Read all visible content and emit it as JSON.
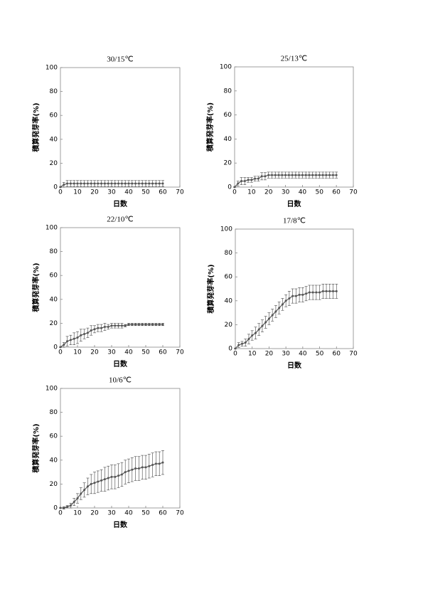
{
  "chart_data": [
    {
      "type": "line",
      "title": "30/15℃",
      "xlabel": "日数",
      "ylabel": "積算発芽率(%)",
      "xlim": [
        0,
        70
      ],
      "ylim": [
        0,
        100
      ],
      "xticks": [
        0,
        10,
        20,
        30,
        40,
        50,
        60,
        70
      ],
      "yticks": [
        0,
        20,
        40,
        60,
        80,
        100
      ],
      "color": "#555555",
      "x": [
        0,
        2,
        4,
        6,
        8,
        10,
        12,
        14,
        16,
        18,
        20,
        22,
        24,
        26,
        28,
        30,
        32,
        34,
        36,
        38,
        40,
        42,
        44,
        46,
        48,
        50,
        52,
        54,
        56,
        58,
        60
      ],
      "values": [
        0,
        2,
        3,
        3,
        3,
        3,
        3,
        3,
        3,
        3,
        3,
        3,
        3,
        3,
        3,
        3,
        3,
        3,
        3,
        3,
        3,
        3,
        3,
        3,
        3,
        3,
        3,
        3,
        3,
        3,
        3
      ],
      "errors": [
        0,
        2,
        2.5,
        2.5,
        2.5,
        2.5,
        2.5,
        2.5,
        2.5,
        2.5,
        2.5,
        2.5,
        2.5,
        2.5,
        2.5,
        2.5,
        2.5,
        2.5,
        2.5,
        2.5,
        2.5,
        2.5,
        2.5,
        2.5,
        2.5,
        2.5,
        2.5,
        2.5,
        2.5,
        2.5,
        2.5
      ]
    },
    {
      "type": "line",
      "title": "25/13℃",
      "xlabel": "日数",
      "ylabel": "積算発芽率(%)",
      "xlim": [
        0,
        70
      ],
      "ylim": [
        0,
        100
      ],
      "xticks": [
        0,
        10,
        20,
        30,
        40,
        50,
        60,
        70
      ],
      "yticks": [
        0,
        20,
        40,
        60,
        80,
        100
      ],
      "color": "#555555",
      "x": [
        0,
        2,
        4,
        6,
        8,
        10,
        12,
        14,
        16,
        18,
        20,
        22,
        24,
        26,
        28,
        30,
        32,
        34,
        36,
        38,
        40,
        42,
        44,
        46,
        48,
        50,
        52,
        54,
        56,
        58,
        60
      ],
      "values": [
        0,
        3,
        5,
        5,
        6,
        6,
        7,
        7,
        9,
        9,
        10,
        10,
        10,
        10,
        10,
        10,
        10,
        10,
        10,
        10,
        10,
        10,
        10,
        10,
        10,
        10,
        10,
        10,
        10,
        10,
        10
      ],
      "errors": [
        0,
        2,
        3,
        3,
        2,
        2,
        2,
        2,
        3,
        3,
        2.5,
        2.5,
        2.5,
        2.5,
        2.5,
        2.5,
        2.5,
        2.5,
        2.5,
        2.5,
        2.5,
        2.5,
        2.5,
        2.5,
        2.5,
        2.5,
        2.5,
        2.5,
        2.5,
        2.5,
        2.5
      ]
    },
    {
      "type": "line",
      "title": "22/10℃",
      "xlabel": "日数",
      "ylabel": "積算発芽率(%)",
      "xlim": [
        0,
        70
      ],
      "ylim": [
        0,
        100
      ],
      "xticks": [
        0,
        10,
        20,
        30,
        40,
        50,
        60,
        70
      ],
      "yticks": [
        0,
        20,
        40,
        60,
        80,
        100
      ],
      "color": "#555555",
      "x": [
        0,
        2,
        4,
        6,
        8,
        10,
        12,
        14,
        16,
        18,
        20,
        22,
        24,
        26,
        28,
        30,
        32,
        34,
        36,
        38,
        40,
        42,
        44,
        46,
        48,
        50,
        52,
        54,
        56,
        58,
        60
      ],
      "values": [
        0,
        2,
        5,
        6,
        7,
        8,
        10,
        11,
        12,
        14,
        15,
        16,
        16,
        17,
        17,
        18,
        18,
        18,
        18,
        18,
        19,
        19,
        19,
        19,
        19,
        19,
        19,
        19,
        19,
        19,
        19
      ],
      "errors": [
        0,
        2,
        4,
        4,
        5,
        5,
        5,
        4,
        4,
        4,
        3,
        3,
        3,
        3,
        2,
        2,
        2,
        2,
        2,
        1,
        1,
        1,
        1,
        1,
        1,
        1,
        1,
        1,
        1,
        1,
        1
      ]
    },
    {
      "type": "line",
      "title": "17/8℃",
      "xlabel": "日数",
      "ylabel": "積算発芽率(%)",
      "xlim": [
        0,
        70
      ],
      "ylim": [
        0,
        100
      ],
      "xticks": [
        0,
        10,
        20,
        30,
        40,
        50,
        60,
        70
      ],
      "yticks": [
        0,
        20,
        40,
        60,
        80,
        100
      ],
      "color": "#555555",
      "x": [
        0,
        2,
        4,
        6,
        8,
        10,
        12,
        14,
        16,
        18,
        20,
        22,
        24,
        26,
        28,
        30,
        32,
        34,
        36,
        38,
        40,
        42,
        44,
        46,
        48,
        50,
        52,
        54,
        56,
        58,
        60
      ],
      "values": [
        0,
        3,
        4,
        5,
        8,
        11,
        13,
        16,
        19,
        22,
        25,
        28,
        31,
        34,
        37,
        40,
        42,
        44,
        44,
        45,
        45,
        46,
        47,
        47,
        47,
        47,
        48,
        48,
        48,
        48,
        48
      ],
      "errors": [
        0,
        2,
        2,
        3,
        4,
        4,
        5,
        5,
        5,
        5,
        5,
        5,
        5,
        5,
        5,
        5,
        6,
        6,
        6,
        6,
        6,
        6,
        6,
        6,
        6,
        6,
        6,
        6,
        6,
        6,
        6
      ]
    },
    {
      "type": "line",
      "title": "10/6℃",
      "xlabel": "日数",
      "ylabel": "積算発芽率(%)",
      "xlim": [
        0,
        70
      ],
      "ylim": [
        0,
        100
      ],
      "xticks": [
        0,
        10,
        20,
        30,
        40,
        50,
        60,
        70
      ],
      "yticks": [
        0,
        20,
        40,
        60,
        80,
        100
      ],
      "color": "#555555",
      "x": [
        0,
        2,
        4,
        6,
        8,
        10,
        12,
        14,
        16,
        18,
        20,
        22,
        24,
        26,
        28,
        30,
        32,
        34,
        36,
        38,
        40,
        42,
        44,
        46,
        48,
        50,
        52,
        54,
        56,
        58,
        60
      ],
      "values": [
        0,
        0,
        1,
        2,
        5,
        8,
        12,
        15,
        18,
        20,
        21,
        22,
        23,
        24,
        25,
        26,
        26,
        27,
        28,
        30,
        31,
        32,
        33,
        33,
        34,
        34,
        35,
        36,
        37,
        37,
        38
      ],
      "errors": [
        0,
        1,
        1,
        2,
        3,
        4,
        5,
        6,
        7,
        8,
        9,
        9,
        9,
        10,
        10,
        10,
        10,
        10,
        10,
        10,
        10,
        10,
        10,
        10,
        10,
        10,
        10,
        10,
        10,
        10,
        10
      ]
    }
  ]
}
